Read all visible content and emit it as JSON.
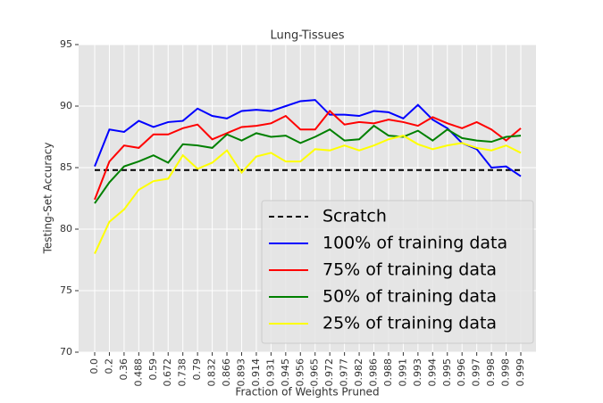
{
  "chart_data": {
    "type": "line",
    "title": "Lung-Tissues",
    "x_label": "Fraction of Weights Pruned",
    "y_label": "Testing-Set Accuracy",
    "categories": [
      "0.0",
      "0.2",
      "0.36",
      "0.488",
      "0.59",
      "0.672",
      "0.738",
      "0.79",
      "0.832",
      "0.866",
      "0.893",
      "0.914",
      "0.931",
      "0.945",
      "0.956",
      "0.965",
      "0.972",
      "0.977",
      "0.982",
      "0.986",
      "0.988",
      "0.991",
      "0.993",
      "0.994",
      "0.995",
      "0.996",
      "0.997",
      "0.998",
      "0.998",
      "0.999"
    ],
    "ylim": [
      70,
      95
    ],
    "yticks": [
      70,
      75,
      80,
      85,
      90,
      95
    ],
    "grid": true,
    "legend": "lower right",
    "series": [
      {
        "name": "Scratch",
        "color": "#000000",
        "dashed": true,
        "values": [
          84.8,
          84.8,
          84.8,
          84.8,
          84.8,
          84.8,
          84.8,
          84.8,
          84.8,
          84.8,
          84.8,
          84.8,
          84.8,
          84.8,
          84.8,
          84.8,
          84.8,
          84.8,
          84.8,
          84.8,
          84.8,
          84.8,
          84.8,
          84.8,
          84.8,
          84.8,
          84.8,
          84.8,
          84.8,
          84.8
        ]
      },
      {
        "name": "100% of training data",
        "color": "#0000ff",
        "values": [
          85.1,
          88.1,
          87.9,
          88.8,
          88.3,
          88.7,
          88.8,
          89.8,
          89.2,
          89.0,
          89.6,
          89.7,
          89.6,
          90.0,
          90.4,
          90.5,
          89.3,
          89.3,
          89.2,
          89.6,
          89.5,
          89.0,
          90.1,
          88.9,
          88.2,
          87.0,
          86.5,
          85.0,
          85.1,
          84.3
        ]
      },
      {
        "name": "75% of training data",
        "color": "#ff0000",
        "values": [
          82.4,
          85.5,
          86.8,
          86.6,
          87.7,
          87.7,
          88.2,
          88.5,
          87.3,
          87.8,
          88.3,
          88.4,
          88.6,
          89.2,
          88.1,
          88.1,
          89.6,
          88.5,
          88.7,
          88.6,
          88.9,
          88.7,
          88.4,
          89.1,
          88.6,
          88.2,
          88.7,
          88.1,
          87.2,
          88.2
        ]
      },
      {
        "name": "50% of training data",
        "color": "#008000",
        "values": [
          82.1,
          83.8,
          85.1,
          85.5,
          86.0,
          85.4,
          86.9,
          86.8,
          86.6,
          87.7,
          87.2,
          87.8,
          87.5,
          87.6,
          87.0,
          87.5,
          88.1,
          87.2,
          87.3,
          88.4,
          87.6,
          87.5,
          88.0,
          87.2,
          88.1,
          87.4,
          87.2,
          87.1,
          87.5,
          87.6
        ]
      },
      {
        "name": "25% of training data",
        "color": "#ffff00",
        "values": [
          78.0,
          80.6,
          81.6,
          83.2,
          83.9,
          84.1,
          86.0,
          84.9,
          85.4,
          86.4,
          84.6,
          85.9,
          86.2,
          85.5,
          85.5,
          86.5,
          86.4,
          86.8,
          86.4,
          86.8,
          87.3,
          87.6,
          86.9,
          86.5,
          86.8,
          87.0,
          86.6,
          86.4,
          86.8,
          86.2
        ]
      }
    ]
  }
}
